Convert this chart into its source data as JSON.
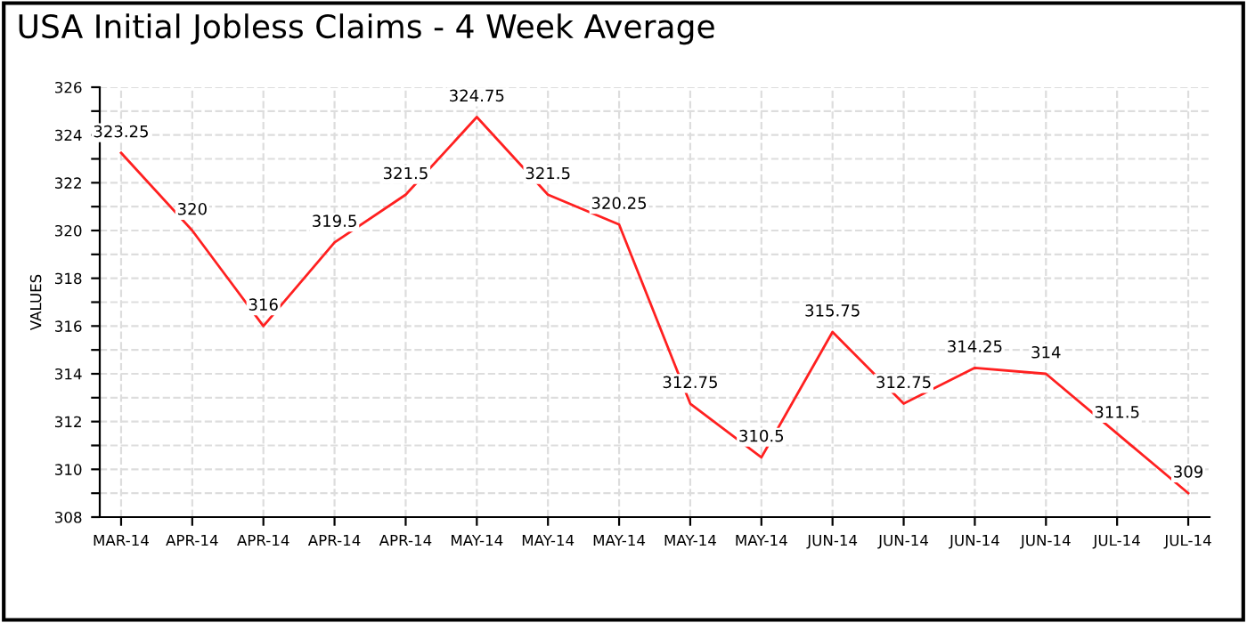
{
  "chart_data": {
    "type": "line",
    "title": "USA Initial Jobless Claims - 4 Week Average",
    "ylabel": "VALUES",
    "categories": [
      "MAR-14",
      "APR-14",
      "APR-14",
      "APR-14",
      "APR-14",
      "MAY-14",
      "MAY-14",
      "MAY-14",
      "MAY-14",
      "MAY-14",
      "JUN-14",
      "JUN-14",
      "JUN-14",
      "JUN-14",
      "JUL-14",
      "JUL-14"
    ],
    "series": [
      {
        "color": "#ff2020",
        "values": [
          323.25,
          320,
          316,
          319.5,
          321.5,
          324.75,
          321.5,
          320.25,
          312.75,
          310.5,
          315.75,
          312.75,
          314.25,
          314,
          311.5,
          309
        ]
      }
    ],
    "ylim": [
      308,
      326
    ],
    "yticks": [
      308,
      {
        "value": 309,
        "label": null
      },
      310,
      {
        "value": 311,
        "label": null
      },
      312,
      {
        "value": 313,
        "label": null
      },
      314,
      {
        "value": 315,
        "label": null
      },
      316,
      {
        "value": 317,
        "label": null
      },
      318,
      {
        "value": 319,
        "label": null
      },
      320,
      {
        "value": 321,
        "label": null
      },
      322,
      {
        "value": 323,
        "label": null
      },
      324,
      {
        "value": 325,
        "label": null
      },
      326
    ],
    "grid": true,
    "data_labels": true,
    "marker": "none",
    "line_style": "solid"
  }
}
